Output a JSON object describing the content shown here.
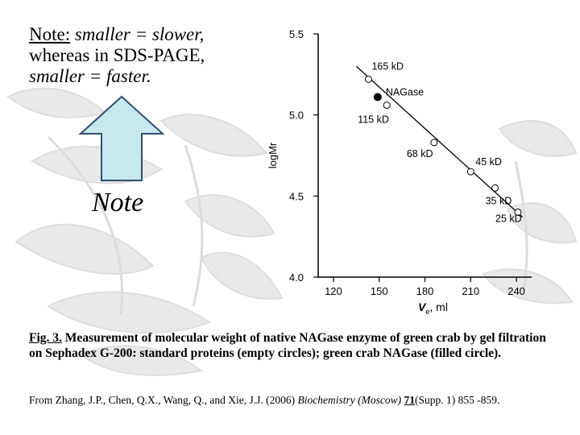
{
  "note": {
    "label": "Note:",
    "line1_rest": " smaller = slower,",
    "line2": "whereas in SDS-PAGE,",
    "line3": "smaller = faster."
  },
  "arrow_label": "Note",
  "arrow_color": "#c8e8ef",
  "chart_data": {
    "type": "scatter",
    "ylabel": "logMr",
    "xlabel_main": "V",
    "xlabel_sub": "e",
    "xlabel_unit": ", ml",
    "xlim": [
      110,
      250
    ],
    "ylim": [
      4.0,
      5.5
    ],
    "x_ticks": [
      120,
      150,
      180,
      210,
      240
    ],
    "y_ticks": [
      "4.0",
      "4.5",
      "5.0",
      "5.5"
    ],
    "points": [
      {
        "label": "165 kD",
        "x": 143,
        "y": 5.22,
        "filled": false
      },
      {
        "label": "NAGase",
        "x": 149,
        "y": 5.11,
        "filled": true
      },
      {
        "label": "115 kD",
        "x": 155,
        "y": 5.06,
        "filled": false
      },
      {
        "label": "68 kD",
        "x": 186,
        "y": 4.83,
        "filled": false
      },
      {
        "label": "45 kD",
        "x": 210,
        "y": 4.65,
        "filled": false
      },
      {
        "label": "35 kD",
        "x": 226,
        "y": 4.55,
        "filled": false
      },
      {
        "label": "25 kD",
        "x": 241,
        "y": 4.4,
        "filled": false
      }
    ],
    "fit_line": [
      {
        "x": 135,
        "y": 5.3
      },
      {
        "x": 244,
        "y": 4.37
      }
    ]
  },
  "caption": {
    "label": "Fig. 3.",
    "text": " Measurement of molecular weight of native NAGase enzyme of green crab by gel filtration on Sephadex G-200: standard proteins (empty circles); green crab NAGase (filled circle)."
  },
  "citation": {
    "prefix": "From Zhang, J.P., Chen, Q.X., Wang, Q., and Xie, J.J. (2006) ",
    "journal": "Biochemistry (Moscow)",
    "volume": "71",
    "suffix": "(Supp. 1) 855 -859."
  }
}
